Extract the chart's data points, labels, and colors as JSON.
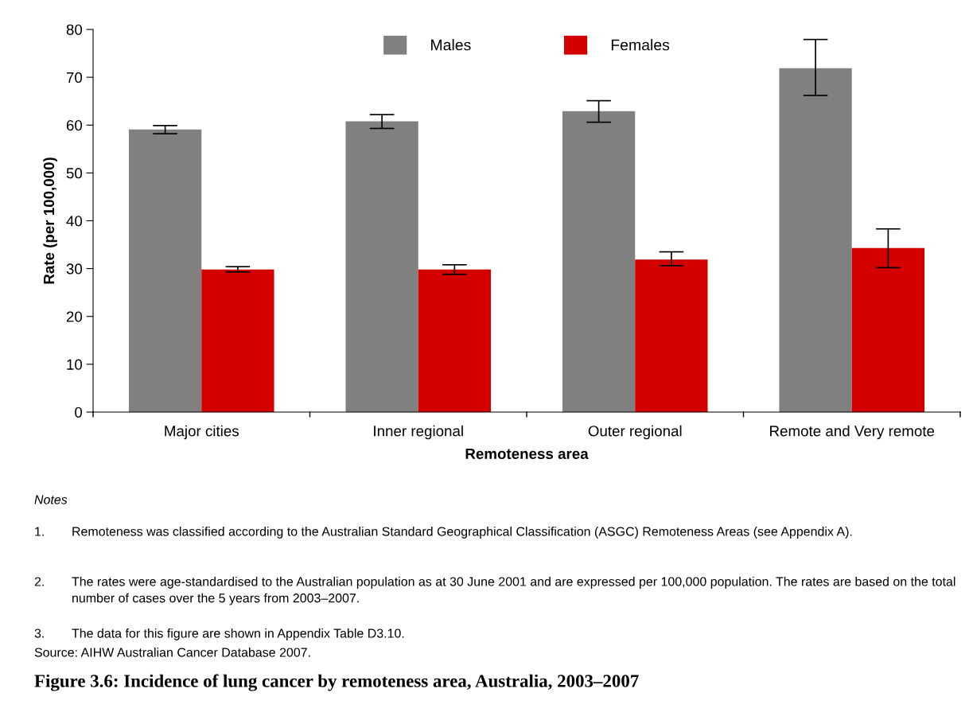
{
  "chart_data": {
    "type": "bar",
    "title": "Figure 3.6: Incidence of lung cancer by remoteness area, Australia, 2003–2007",
    "xlabel": "Remoteness area",
    "ylabel": "Rate (per 100,000)",
    "categories": [
      "Major cities",
      "Inner regional",
      "Outer regional",
      "Remote and Very remote"
    ],
    "series": [
      {
        "name": "Males",
        "color": "#808080",
        "values": [
          59.1,
          60.8,
          62.9,
          71.9
        ],
        "errors": [
          [
            58.2,
            59.9
          ],
          [
            59.3,
            62.2
          ],
          [
            60.6,
            65.1
          ],
          [
            66.2,
            77.9
          ]
        ]
      },
      {
        "name": "Females",
        "color": "#d40000",
        "values": [
          29.8,
          29.8,
          31.9,
          34.3
        ],
        "errors": [
          [
            29.3,
            30.4
          ],
          [
            28.8,
            30.8
          ],
          [
            30.6,
            33.5
          ],
          [
            30.2,
            38.3
          ]
        ]
      }
    ],
    "ylim": [
      0,
      80
    ],
    "yticks": [
      0,
      10,
      20,
      30,
      40,
      50,
      60,
      70,
      80
    ],
    "grid": false,
    "legend": "top",
    "annotations": [
      "Notes",
      "1.\tRemoteness was classified according to the Australian Standard Geographical Classification (ASGC) Remoteness Areas (see Appendix A).",
      "2.\tThe rates were age-standardised to the Australian population as at 30 June 2001 and are expressed per 100,000 population. The rates are based on the total number of cases over the 5 years from 2003–2007.",
      "3.\tThe data for this figure are shown in Appendix Table D3.10.",
      "Source: AIHW Australian Cancer Database 2007."
    ]
  }
}
